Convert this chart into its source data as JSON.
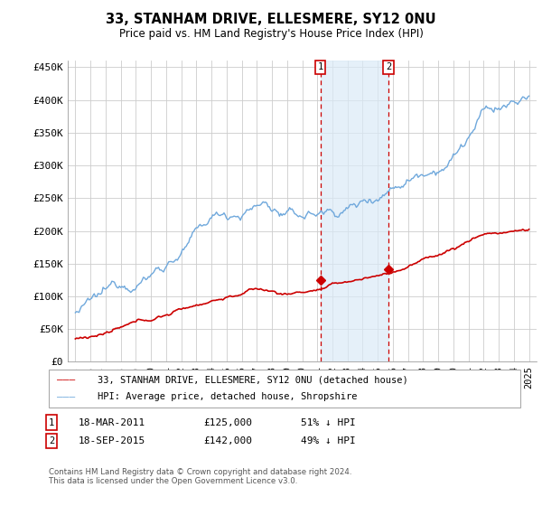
{
  "title": "33, STANHAM DRIVE, ELLESMERE, SY12 0NU",
  "subtitle": "Price paid vs. HM Land Registry's House Price Index (HPI)",
  "hpi_color": "#6fa8dc",
  "price_color": "#cc0000",
  "background_color": "#ffffff",
  "plot_bg_color": "#ffffff",
  "grid_color": "#cccccc",
  "ylim": [
    0,
    460000
  ],
  "yticks": [
    0,
    50000,
    100000,
    150000,
    200000,
    250000,
    300000,
    350000,
    400000,
    450000
  ],
  "ytick_labels": [
    "£0",
    "£50K",
    "£100K",
    "£150K",
    "£200K",
    "£250K",
    "£300K",
    "£350K",
    "£400K",
    "£450K"
  ],
  "transaction1_date": "18-MAR-2011",
  "transaction1_price": 125000,
  "transaction1_hpi_pct": "51%",
  "transaction2_date": "18-SEP-2015",
  "transaction2_price": 142000,
  "transaction2_hpi_pct": "49%",
  "legend_line1": "33, STANHAM DRIVE, ELLESMERE, SY12 0NU (detached house)",
  "legend_line2": "HPI: Average price, detached house, Shropshire",
  "footnote": "Contains HM Land Registry data © Crown copyright and database right 2024.\nThis data is licensed under the Open Government Licence v3.0.",
  "highlight_color": "#daeaf7",
  "highlight_alpha": 0.7,
  "t1_year": 2011.21,
  "t2_year": 2015.71
}
